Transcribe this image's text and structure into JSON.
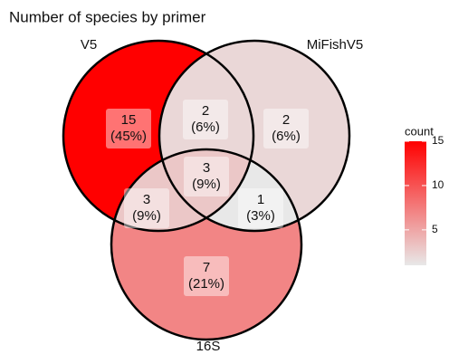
{
  "chart_data": {
    "type": "venn",
    "title": "Number of species by primer",
    "sets": [
      "V5",
      "MiFishV5",
      "16S"
    ],
    "regions": [
      {
        "sets": [
          0
        ],
        "value": 15,
        "percent_label": "(45%)"
      },
      {
        "sets": [
          0,
          1
        ],
        "value": 2,
        "percent_label": "(6%)"
      },
      {
        "sets": [
          1
        ],
        "value": 2,
        "percent_label": "(6%)"
      },
      {
        "sets": [
          0,
          1,
          2
        ],
        "value": 3,
        "percent_label": "(9%)"
      },
      {
        "sets": [
          0,
          2
        ],
        "value": 3,
        "percent_label": "(9%)"
      },
      {
        "sets": [
          1,
          2
        ],
        "value": 1,
        "percent_label": "(3%)"
      },
      {
        "sets": [
          2
        ],
        "value": 7,
        "percent_label": "(21%)"
      }
    ],
    "legend_title": "count",
    "color_low": "#e8e8e8",
    "color_high": "#ff0000",
    "clim": [
      1,
      15
    ],
    "cticks": [
      5,
      10,
      15
    ]
  }
}
